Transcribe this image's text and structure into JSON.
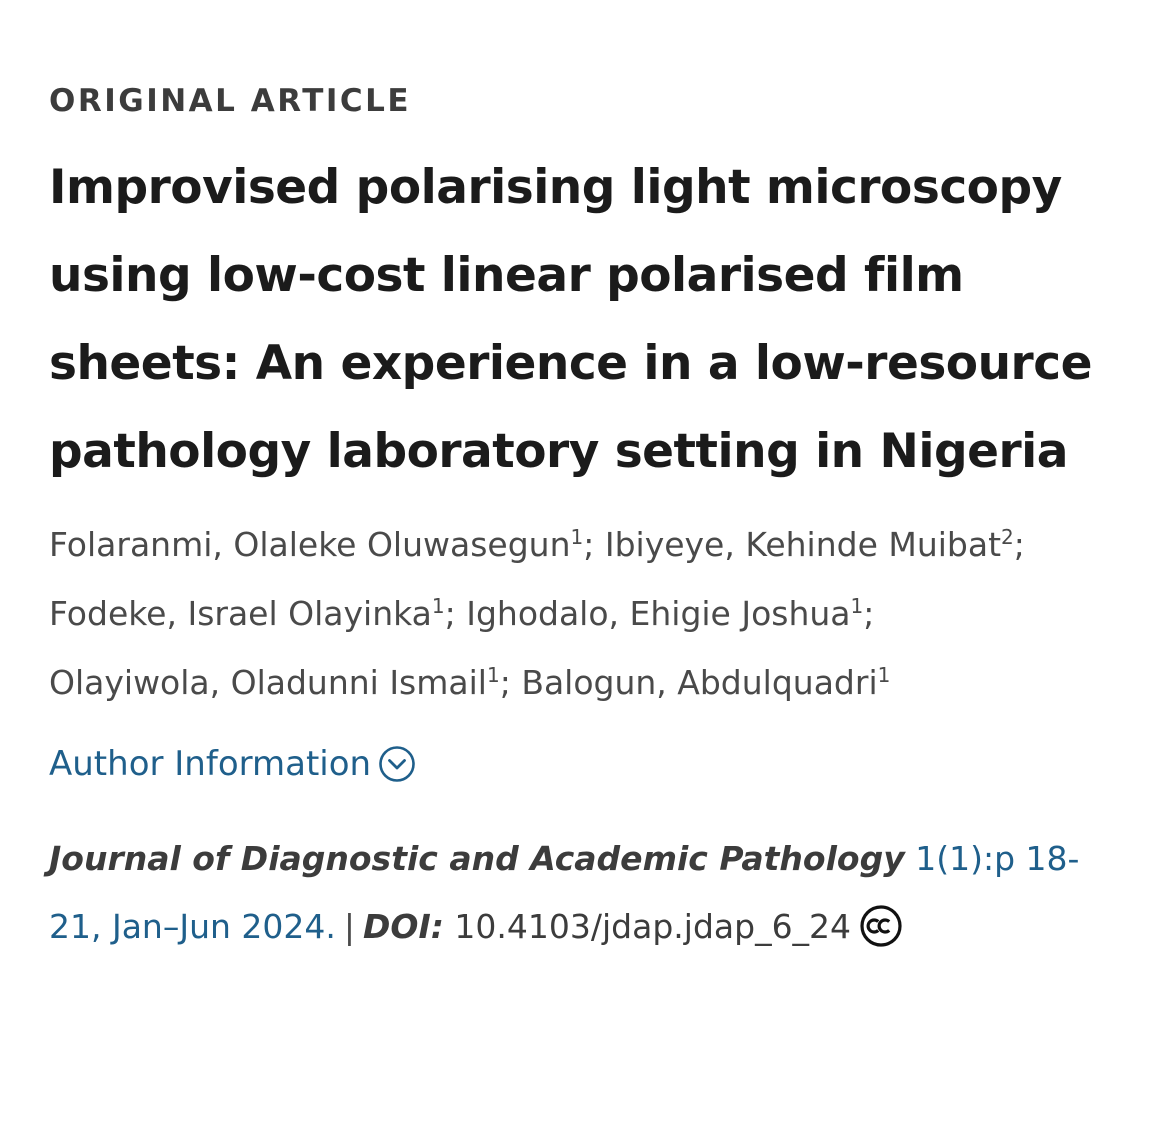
{
  "article_type": "ORIGINAL ARTICLE",
  "title": "Improvised polarising light microscopy using low-cost linear polarised film sheets: An experience in a low-resource pathology laboratory setting in Nigeria",
  "authors": [
    {
      "name": "Folaranmi, Olaleke Oluwasegun",
      "aff": "1"
    },
    {
      "name": "Ibiyeye, Kehinde Muibat",
      "aff": "2"
    },
    {
      "name": "Fodeke, Israel Olayinka",
      "aff": "1"
    },
    {
      "name": "Ighodalo, Ehigie Joshua",
      "aff": "1"
    },
    {
      "name": "Olayiwola, Oladunni Ismail",
      "aff": "1"
    },
    {
      "name": "Balogun, Abdulquadri",
      "aff": "1"
    }
  ],
  "author_info_label": "Author Information",
  "citation": {
    "journal": "Journal of Diagnostic and Academic Pathology",
    "volume": "1(1):p 18-21, Jan–Jun 2024.",
    "separator": "|",
    "doi_label": "DOI:",
    "doi_value": "10.4103/jdap.jdap_6_24"
  },
  "icons": {
    "author_info": "chevron-down-circle-icon",
    "license": "creative-commons-icon"
  },
  "colors": {
    "link": "#1f5f8b",
    "text": "#4a4a4a"
  }
}
